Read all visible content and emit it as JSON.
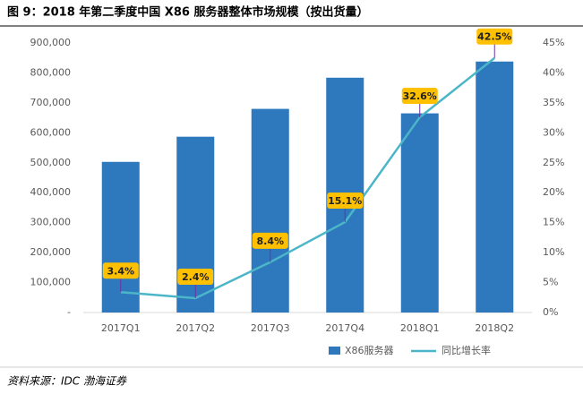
{
  "chart_data": {
    "type": "bar-line",
    "title": "图 9：2018 年第二季度中国 X86 服务器整体市场规模（按出货量）",
    "source": "资料来源：IDC 渤海证券",
    "categories": [
      "2017Q1",
      "2017Q2",
      "2017Q3",
      "2017Q4",
      "2018Q1",
      "2018Q2"
    ],
    "series": [
      {
        "name": "X86服务器",
        "type": "bar",
        "color": "#2e78bd",
        "values": [
          503000,
          587000,
          680000,
          784000,
          665000,
          838000
        ]
      },
      {
        "name": "同比增长率",
        "type": "line",
        "axis": "y2",
        "color": "#4cb6c9",
        "values": [
          3.4,
          2.4,
          8.4,
          15.1,
          32.6,
          42.5
        ],
        "value_labels": [
          "3.4%",
          "2.4%",
          "8.4%",
          "15.1%",
          "32.6%",
          "42.5%"
        ]
      }
    ],
    "ylim": [
      0,
      900000
    ],
    "yticks": [
      {
        "value": 0,
        "label": "-"
      },
      {
        "value": 100000,
        "label": "100,000"
      },
      {
        "value": 200000,
        "label": "200,000"
      },
      {
        "value": 300000,
        "label": "300,000"
      },
      {
        "value": 400000,
        "label": "400,000"
      },
      {
        "value": 500000,
        "label": "500,000"
      },
      {
        "value": 600000,
        "label": "600,000"
      },
      {
        "value": 700000,
        "label": "700,000"
      },
      {
        "value": 800000,
        "label": "800,000"
      },
      {
        "value": 900000,
        "label": "900,000"
      }
    ],
    "y2lim": [
      0,
      45
    ],
    "y2ticks": [
      {
        "value": 0,
        "label": "0%"
      },
      {
        "value": 5,
        "label": "5%"
      },
      {
        "value": 10,
        "label": "10%"
      },
      {
        "value": 15,
        "label": "15%"
      },
      {
        "value": 20,
        "label": "20%"
      },
      {
        "value": 25,
        "label": "25%"
      },
      {
        "value": 30,
        "label": "30%"
      },
      {
        "value": 35,
        "label": "35%"
      },
      {
        "value": 40,
        "label": "40%"
      },
      {
        "value": 45,
        "label": "45%"
      }
    ],
    "label_color": "#ffc000"
  }
}
